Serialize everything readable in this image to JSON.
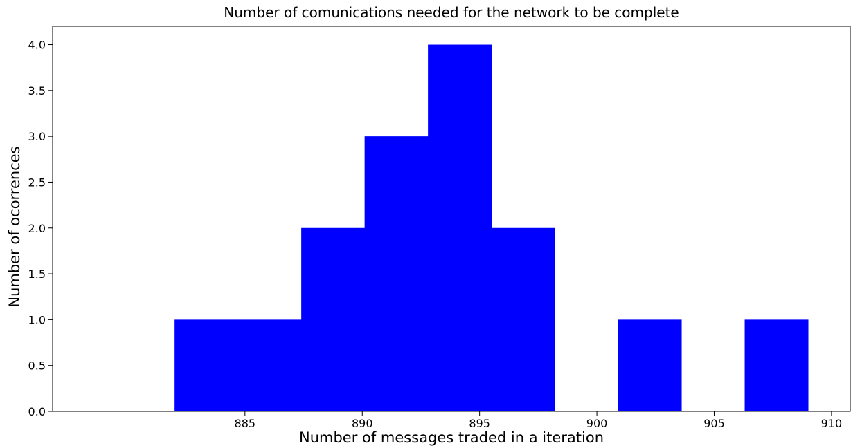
{
  "chart_data": {
    "type": "bar",
    "title": "Number of comunications needed for the network to be complete",
    "xlabel": "Number of messages traded in a iteration",
    "ylabel": "Number of ocorrences",
    "bin_edges": [
      882.0,
      884.7,
      887.4,
      890.1,
      892.8,
      895.5,
      898.2,
      900.9,
      903.6,
      906.3,
      909.0
    ],
    "values": [
      1,
      1,
      2,
      3,
      4,
      2,
      0,
      1,
      0,
      1
    ],
    "color": "#0000ff",
    "xlim": [
      876.8,
      910.8
    ],
    "ylim": [
      0,
      4.2
    ],
    "xticks": [
      885,
      890,
      895,
      900,
      905,
      910
    ],
    "yticks": [
      0.0,
      0.5,
      1.0,
      1.5,
      2.0,
      2.5,
      3.0,
      3.5,
      4.0
    ],
    "xtick_labels": [
      "885",
      "890",
      "895",
      "900",
      "905",
      "910"
    ],
    "ytick_labels": [
      "0.0",
      "0.5",
      "1.0",
      "1.5",
      "2.0",
      "2.5",
      "3.0",
      "3.5",
      "4.0"
    ],
    "grid": false,
    "legend": "none"
  }
}
